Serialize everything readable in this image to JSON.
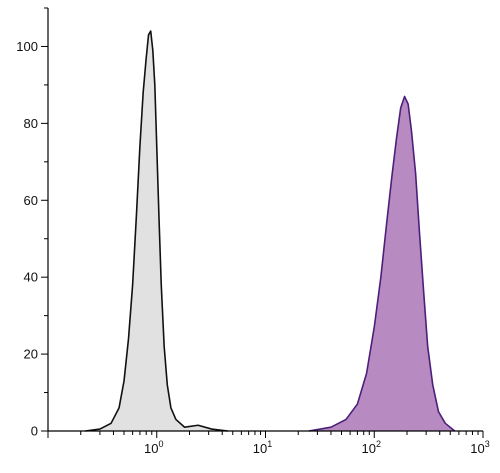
{
  "colors": {
    "axis": "#000000",
    "control_fill": "#e1e1e1",
    "control_stroke": "#111111",
    "sample_fill": "#b78ac2",
    "sample_stroke": "#4b1f7a"
  },
  "chart_data": {
    "type": "area",
    "title": "",
    "xlabel": "",
    "ylabel": "",
    "x_scale": "log",
    "xlim": [
      0.1,
      1000
    ],
    "ylim": [
      0,
      110
    ],
    "grid": false,
    "legend": "none",
    "x_ticks": [
      {
        "base": "10",
        "exp": "0",
        "value": 1
      },
      {
        "base": "10",
        "exp": "1",
        "value": 10
      },
      {
        "base": "10",
        "exp": "2",
        "value": 100
      },
      {
        "base": "10",
        "exp": "3",
        "value": 1000
      }
    ],
    "y_ticks": [
      0,
      20,
      40,
      60,
      80,
      100
    ],
    "series": [
      {
        "key": "control",
        "x": [
          0.22,
          0.3,
          0.38,
          0.45,
          0.5,
          0.55,
          0.6,
          0.65,
          0.7,
          0.75,
          0.8,
          0.84,
          0.88,
          0.92,
          0.96,
          1.0,
          1.05,
          1.1,
          1.17,
          1.25,
          1.35,
          1.5,
          1.8,
          2.4,
          3.2,
          4.5
        ],
        "y": [
          0,
          0.5,
          2,
          6,
          13,
          24,
          38,
          56,
          74,
          88,
          97,
          103,
          104,
          99,
          90,
          74,
          55,
          38,
          22,
          12,
          6,
          3,
          1,
          1.5,
          0.5,
          0
        ]
      },
      {
        "key": "sample",
        "x": [
          25,
          40,
          55,
          70,
          85,
          100,
          115,
          130,
          145,
          160,
          175,
          190,
          205,
          220,
          240,
          260,
          285,
          310,
          345,
          390,
          450,
          550
        ],
        "y": [
          0,
          1,
          3,
          7,
          15,
          27,
          40,
          54,
          66,
          76,
          84,
          87,
          85,
          78,
          67,
          52,
          36,
          22,
          12,
          5,
          2,
          0
        ]
      }
    ]
  }
}
